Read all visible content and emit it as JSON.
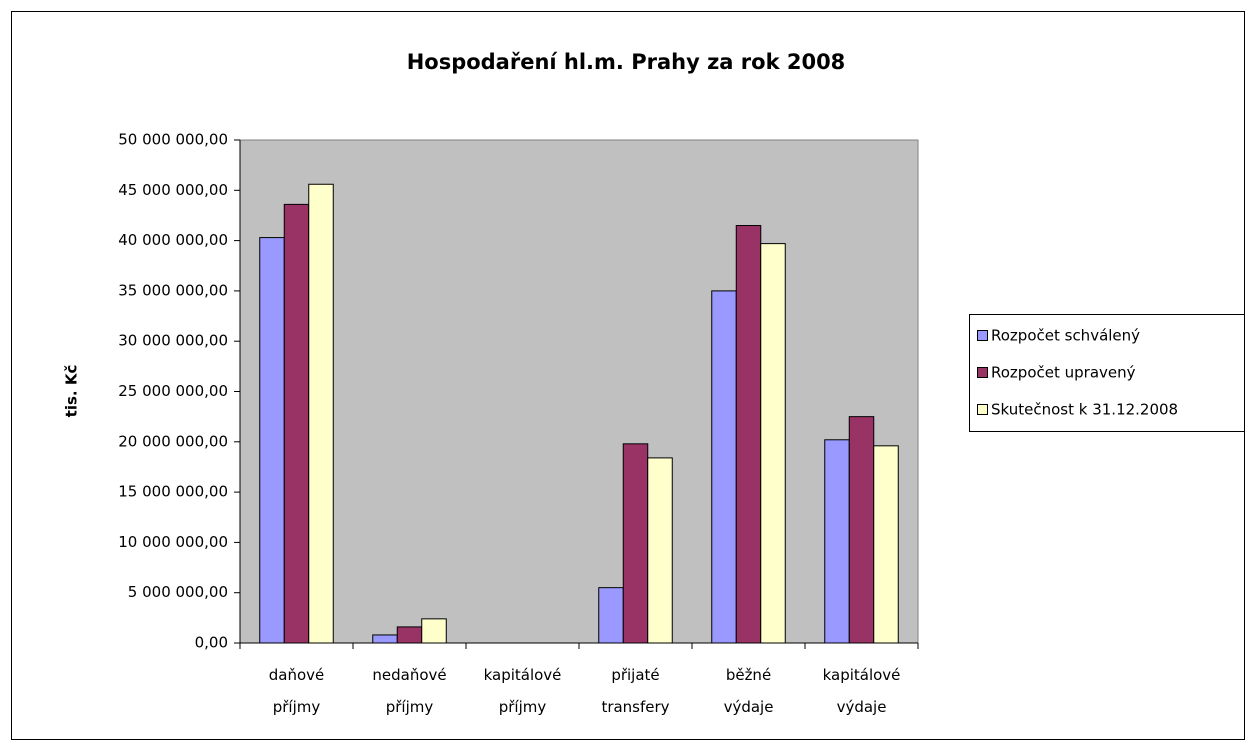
{
  "chart_data": {
    "type": "bar",
    "title": "Hospodaření hl.m. Prahy za rok 2008",
    "ylabel": "tis. Kč",
    "categories": [
      "daňové příjmy",
      "nedaňové příjmy",
      "kapitálové příjmy",
      "přijaté transfery",
      "běžné výdaje",
      "kapitálové výdaje"
    ],
    "series": [
      {
        "name": "Rozpočet schválený",
        "color": "#9999ff",
        "values": [
          40300000,
          800000,
          0,
          5500000,
          35000000,
          20200000
        ]
      },
      {
        "name": "Rozpočet upravený",
        "color": "#993366",
        "values": [
          43600000,
          1600000,
          0,
          19800000,
          41500000,
          22500000
        ]
      },
      {
        "name": "Skutečnost k 31.12.2008",
        "color": "#ffffcc",
        "values": [
          45600000,
          2400000,
          0,
          18400000,
          39700000,
          19600000
        ]
      }
    ],
    "ylim": [
      0,
      50000000
    ],
    "yticks": [
      {
        "value": 0,
        "label": "0,00"
      },
      {
        "value": 5000000,
        "label": "5 000 000,00"
      },
      {
        "value": 10000000,
        "label": "10 000 000,00"
      },
      {
        "value": 15000000,
        "label": "15 000 000,00"
      },
      {
        "value": 20000000,
        "label": "20 000 000,00"
      },
      {
        "value": 25000000,
        "label": "25 000 000,00"
      },
      {
        "value": 30000000,
        "label": "30 000 000,00"
      },
      {
        "value": 35000000,
        "label": "35 000 000,00"
      },
      {
        "value": 40000000,
        "label": "40 000 000,00"
      },
      {
        "value": 45000000,
        "label": "45 000 000,00"
      },
      {
        "value": 50000000,
        "label": "50 000 000,00"
      }
    ],
    "legend": "right"
  }
}
